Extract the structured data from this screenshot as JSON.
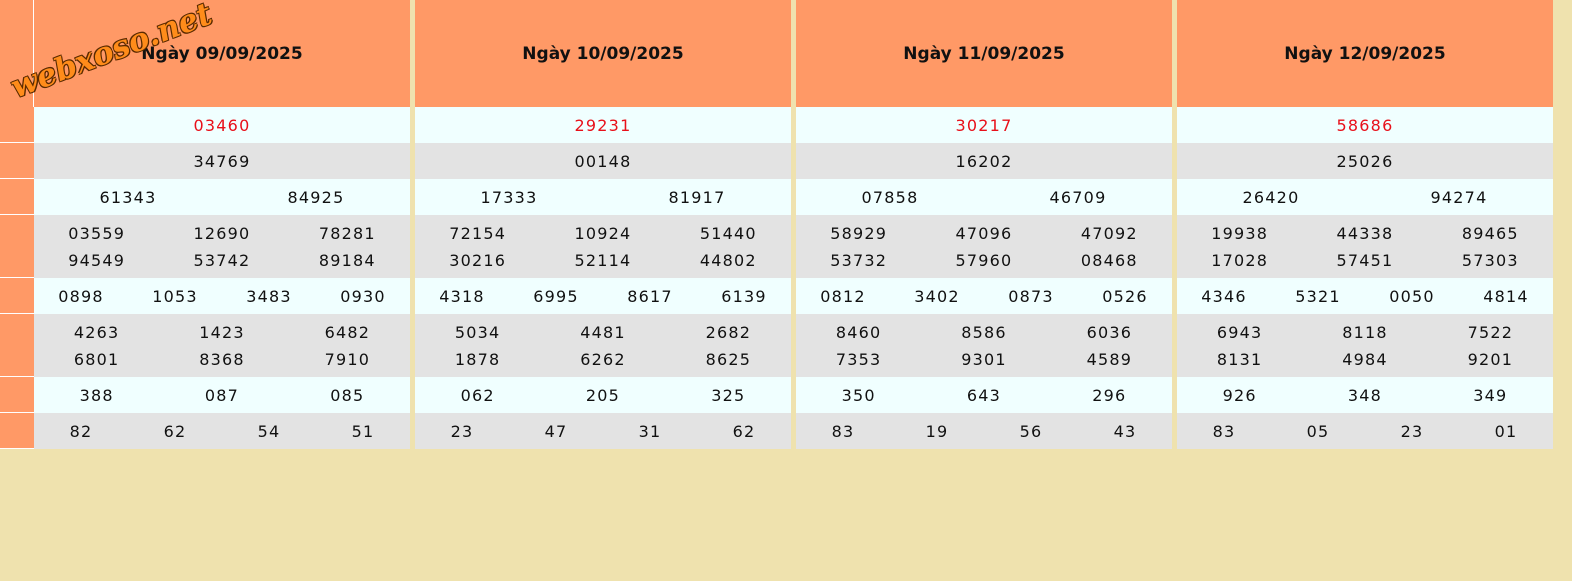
{
  "watermark": "webxoso.net",
  "days": [
    {
      "date": "Ngày 09/09/2025",
      "prizes": [
        [
          "03460"
        ],
        [
          "34769"
        ],
        [
          "61343",
          "84925"
        ],
        [
          "03559",
          "12690",
          "78281",
          "94549",
          "53742",
          "89184"
        ],
        [
          "0898",
          "1053",
          "3483",
          "0930"
        ],
        [
          "4263",
          "1423",
          "6482",
          "6801",
          "8368",
          "7910"
        ],
        [
          "388",
          "087",
          "085"
        ],
        [
          "82",
          "62",
          "54",
          "51"
        ]
      ]
    },
    {
      "date": "Ngày 10/09/2025",
      "prizes": [
        [
          "29231"
        ],
        [
          "00148"
        ],
        [
          "17333",
          "81917"
        ],
        [
          "72154",
          "10924",
          "51440",
          "30216",
          "52114",
          "44802"
        ],
        [
          "4318",
          "6995",
          "8617",
          "6139"
        ],
        [
          "5034",
          "4481",
          "2682",
          "1878",
          "6262",
          "8625"
        ],
        [
          "062",
          "205",
          "325"
        ],
        [
          "23",
          "47",
          "31",
          "62"
        ]
      ]
    },
    {
      "date": "Ngày 11/09/2025",
      "prizes": [
        [
          "30217"
        ],
        [
          "16202"
        ],
        [
          "07858",
          "46709"
        ],
        [
          "58929",
          "47096",
          "47092",
          "53732",
          "57960",
          "08468"
        ],
        [
          "0812",
          "3402",
          "0873",
          "0526"
        ],
        [
          "8460",
          "8586",
          "6036",
          "7353",
          "9301",
          "4589"
        ],
        [
          "350",
          "643",
          "296"
        ],
        [
          "83",
          "19",
          "56",
          "43"
        ]
      ]
    },
    {
      "date": "Ngày 12/09/2025",
      "prizes": [
        [
          "58686"
        ],
        [
          "25026"
        ],
        [
          "26420",
          "94274"
        ],
        [
          "19938",
          "44338",
          "89465",
          "17028",
          "57451",
          "57303"
        ],
        [
          "4346",
          "5321",
          "0050",
          "4814"
        ],
        [
          "6943",
          "8118",
          "7522",
          "8131",
          "4984",
          "9201"
        ],
        [
          "926",
          "348",
          "349"
        ],
        [
          "83",
          "05",
          "23",
          "01"
        ]
      ]
    }
  ]
}
